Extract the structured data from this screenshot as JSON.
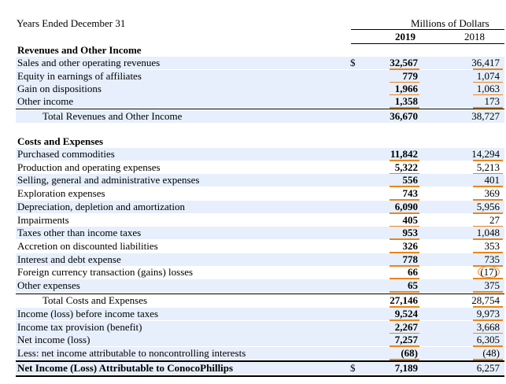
{
  "header": {
    "period_label": "Years Ended December 31",
    "unit_label": "Millions of Dollars",
    "col_2019": "2019",
    "col_2018": "2018"
  },
  "currency_symbol": "$",
  "revenues": {
    "title": "Revenues and Other Income",
    "rows": [
      {
        "label": "Sales and other operating revenues",
        "v2019": "32,567",
        "v2018": "36,417"
      },
      {
        "label": "Equity in earnings of affiliates",
        "v2019": "779",
        "v2018": "1,074"
      },
      {
        "label": "Gain on dispositions",
        "v2019": "1,966",
        "v2018": "1,063"
      },
      {
        "label": "Other income",
        "v2019": "1,358",
        "v2018": "173"
      }
    ],
    "total": {
      "label": "Total Revenues and Other Income",
      "v2019": "36,670",
      "v2018": "38,727"
    }
  },
  "costs": {
    "title": "Costs and Expenses",
    "rows": [
      {
        "label": "Purchased commodities",
        "v2019": "11,842",
        "v2018": "14,294"
      },
      {
        "label": "Production and operating expenses",
        "v2019": "5,322",
        "v2018": "5,213"
      },
      {
        "label": "Selling, general and administrative expenses",
        "v2019": "556",
        "v2018": "401"
      },
      {
        "label": "Exploration expenses",
        "v2019": "743",
        "v2018": "369"
      },
      {
        "label": "Depreciation, depletion and amortization",
        "v2019": "6,090",
        "v2018": "5,956"
      },
      {
        "label": "Impairments",
        "v2019": "405",
        "v2018": "27"
      },
      {
        "label": "Taxes other than income taxes",
        "v2019": "953",
        "v2018": "1,048"
      },
      {
        "label": "Accretion on discounted liabilities",
        "v2019": "326",
        "v2018": "353"
      },
      {
        "label": "Interest and debt expense",
        "v2019": "778",
        "v2018": "735"
      },
      {
        "label": "Foreign currency transaction (gains) losses",
        "v2019": "66",
        "v2018": "(17)"
      },
      {
        "label": "Other expenses",
        "v2019": "65",
        "v2018": "375"
      }
    ],
    "total": {
      "label": "Total Costs and Expenses",
      "v2019": "27,146",
      "v2018": "28,754"
    }
  },
  "bottom": [
    {
      "label": "Income (loss) before income taxes",
      "v2019": "9,524",
      "v2018": "9,973"
    },
    {
      "label": "Income tax provision (benefit)",
      "v2019": "2,267",
      "v2018": "3,668"
    },
    {
      "label": "Net income (loss)",
      "v2019": "7,257",
      "v2018": "6,305"
    },
    {
      "label": "Less: net income attributable to noncontrolling interests",
      "v2019": "(68)",
      "v2018": "(48)"
    }
  ],
  "net": {
    "label": "Net Income (Loss) Attributable to ConocoPhillips",
    "v2019": "7,189",
    "v2018": "6,257"
  }
}
